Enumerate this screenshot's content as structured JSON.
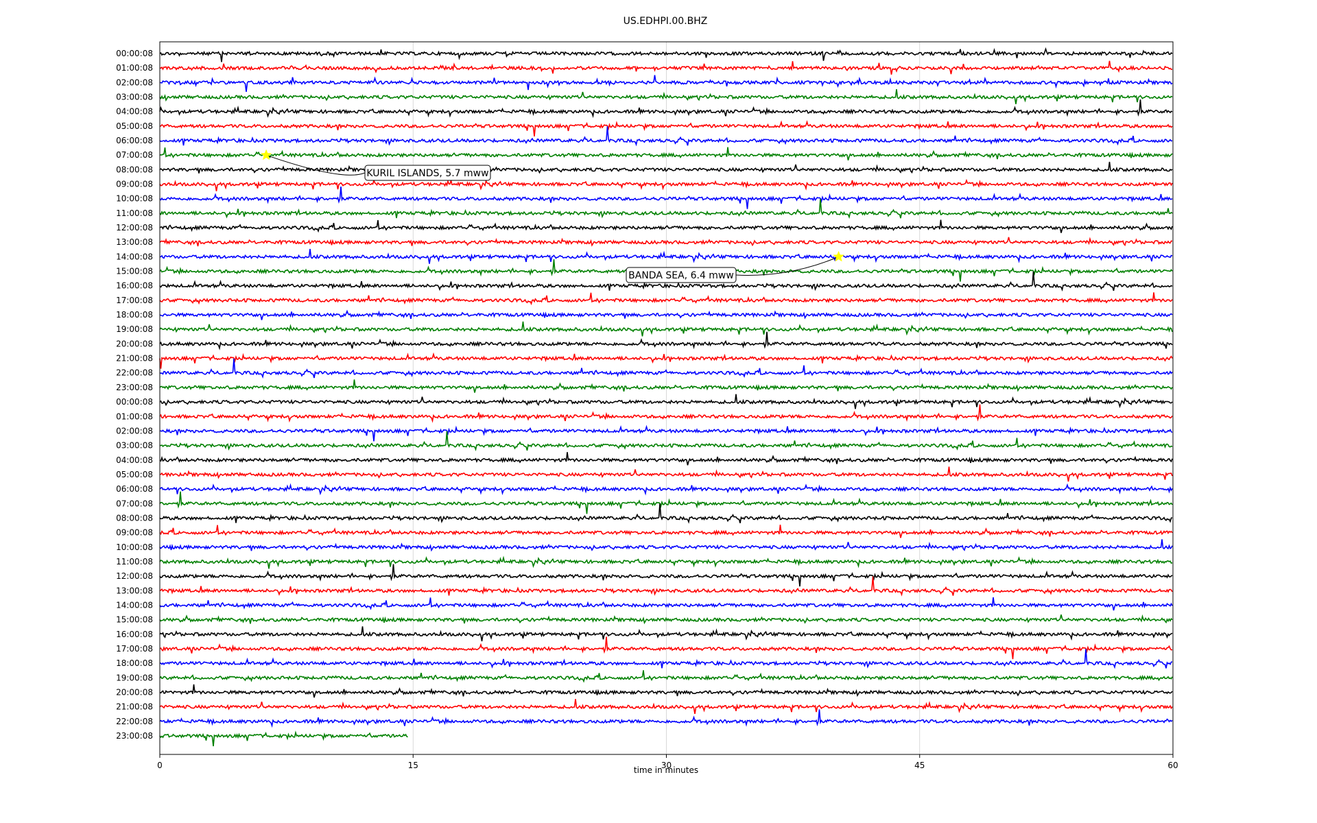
{
  "chart_data": {
    "type": "line",
    "title": "US.EDHPI.00.BHZ",
    "xlabel": "time in minutes",
    "ylabel": "",
    "xlim": [
      0,
      60
    ],
    "x_ticks": [
      "0",
      "15",
      "30",
      "45",
      "60"
    ],
    "x_tick_values": [
      0,
      15,
      30,
      45,
      60
    ],
    "grid": "vertical",
    "colors": [
      "#000000",
      "#ff0000",
      "#0000ff",
      "#008000"
    ],
    "row_labels": [
      "00:00:08",
      "01:00:08",
      "02:00:08",
      "03:00:08",
      "04:00:08",
      "05:00:08",
      "06:00:08",
      "07:00:08",
      "08:00:08",
      "09:00:08",
      "10:00:08",
      "11:00:08",
      "12:00:08",
      "13:00:08",
      "14:00:08",
      "15:00:08",
      "16:00:08",
      "17:00:08",
      "18:00:08",
      "19:00:08",
      "20:00:08",
      "21:00:08",
      "22:00:08",
      "23:00:08",
      "00:00:08",
      "01:00:08",
      "02:00:08",
      "03:00:08",
      "04:00:08",
      "05:00:08",
      "06:00:08",
      "07:00:08",
      "08:00:08",
      "09:00:08",
      "10:00:08",
      "11:00:08",
      "12:00:08",
      "13:00:08",
      "14:00:08",
      "15:00:08",
      "16:00:08",
      "17:00:08",
      "18:00:08",
      "19:00:08",
      "20:00:08",
      "21:00:08",
      "22:00:08",
      "23:00:08"
    ],
    "last_row_end_minute": 14.7,
    "annotations": [
      {
        "text": "KURIL ISLANDS, 5.7 mww",
        "row": 7,
        "minute": 6.3
      },
      {
        "text": "BANDA SEA, 6.4 mww",
        "row": 14,
        "minute": 40.2
      }
    ],
    "marker_color": "#ffff00"
  }
}
